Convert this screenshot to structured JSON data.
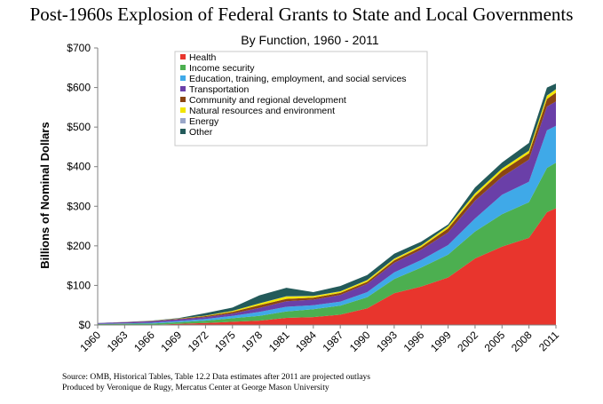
{
  "header": {
    "title": "Post-1960s Explosion of Federal Grants to State and Local Governments"
  },
  "footer": {
    "source": "Source: OMB, Historical Tables, Table 12.2 Data estimates after 2011 are projected outlays",
    "credit": "Produced by Veronique de Rugy, Mercatus Center at George Mason University"
  },
  "chart_data": {
    "type": "area",
    "stacked": true,
    "title": "By Function, 1960 - 2011",
    "xlabel": "",
    "ylabel": "Billions of Nominal Dollars",
    "xlim": [
      1960,
      2011
    ],
    "ylim": [
      0,
      700
    ],
    "yticks": [
      {
        "value": 0,
        "label": "$0"
      },
      {
        "value": 100,
        "label": "$100"
      },
      {
        "value": 200,
        "label": "$200"
      },
      {
        "value": 300,
        "label": "$300"
      },
      {
        "value": 400,
        "label": "$400"
      },
      {
        "value": 500,
        "label": "$500"
      },
      {
        "value": 600,
        "label": "$600"
      },
      {
        "value": 700,
        "label": "$700"
      }
    ],
    "xticks": [
      {
        "value": 1960,
        "label": "1960"
      },
      {
        "value": 1963,
        "label": "1963"
      },
      {
        "value": 1966,
        "label": "1966"
      },
      {
        "value": 1969,
        "label": "1969"
      },
      {
        "value": 1972,
        "label": "1972"
      },
      {
        "value": 1975,
        "label": "1975"
      },
      {
        "value": 1978,
        "label": "1978"
      },
      {
        "value": 1981,
        "label": "1981"
      },
      {
        "value": 1984,
        "label": "1984"
      },
      {
        "value": 1987,
        "label": "1987"
      },
      {
        "value": 1990,
        "label": "1990"
      },
      {
        "value": 1993,
        "label": "1993"
      },
      {
        "value": 1996,
        "label": "1996"
      },
      {
        "value": 1999,
        "label": "1999"
      },
      {
        "value": 2002,
        "label": "2002"
      },
      {
        "value": 2005,
        "label": "2005"
      },
      {
        "value": 2008,
        "label": "2008"
      },
      {
        "value": 2011,
        "label": "2011"
      }
    ],
    "legend_position": "top-left",
    "grid": false,
    "x": [
      1960,
      1963,
      1966,
      1969,
      1972,
      1975,
      1978,
      1981,
      1984,
      1987,
      1990,
      1993,
      1996,
      1999,
      2002,
      2005,
      2008,
      2010,
      2011
    ],
    "series": [
      {
        "name": "Health",
        "color": "#e8352d",
        "values": [
          0.2,
          0.4,
          0.7,
          3,
          5,
          8,
          11,
          18,
          20,
          26,
          42,
          80,
          97,
          120,
          168,
          198,
          220,
          285,
          295
        ]
      },
      {
        "name": "Income security",
        "color": "#4caf50",
        "values": [
          2,
          2.7,
          3,
          4,
          6,
          9,
          12,
          16,
          20,
          23,
          28,
          36,
          48,
          58,
          68,
          82,
          90,
          112,
          115
        ]
      },
      {
        "name": "Education, training, employment, and social services",
        "color": "#3fa9e8",
        "values": [
          0.5,
          0.8,
          2,
          3,
          4,
          6,
          10,
          12,
          10,
          10,
          13,
          17,
          19,
          24,
          33,
          49,
          52,
          95,
          93
        ]
      },
      {
        "name": "Transportation",
        "color": "#6a3fa8",
        "values": [
          1.9,
          3,
          3.8,
          4.5,
          5,
          6,
          10,
          14,
          14,
          17,
          21,
          24,
          26,
          32,
          45,
          45,
          56,
          60,
          62
        ]
      },
      {
        "name": "Community and regional development",
        "color": "#8b4513",
        "values": [
          0.1,
          0.3,
          0.6,
          1.2,
          2.5,
          4,
          7,
          6,
          5,
          5,
          5,
          6,
          6.5,
          10,
          12,
          15,
          16,
          19,
          22
        ]
      },
      {
        "name": "Natural resources and environment",
        "color": "#f2e600",
        "values": [
          0.1,
          0.2,
          0.3,
          0.5,
          1,
          2.5,
          4.5,
          6,
          4,
          3.5,
          4,
          4,
          4,
          5,
          6,
          6,
          6,
          8,
          8
        ]
      },
      {
        "name": "Energy",
        "color": "#9aa7c9",
        "values": [
          0,
          0,
          0,
          0,
          0,
          0.1,
          0.3,
          0.6,
          0.5,
          0.5,
          0.5,
          0.5,
          0.5,
          0.5,
          0.5,
          0.6,
          0.6,
          1,
          1
        ]
      },
      {
        "name": "Other",
        "color": "#235a5a",
        "values": [
          0.2,
          0.3,
          0.6,
          1.4,
          6.5,
          8.4,
          20.2,
          21.4,
          9.5,
          13.5,
          12.5,
          12.5,
          9.5,
          4.5,
          15,
          15,
          19.4,
          20,
          14
        ]
      }
    ]
  }
}
